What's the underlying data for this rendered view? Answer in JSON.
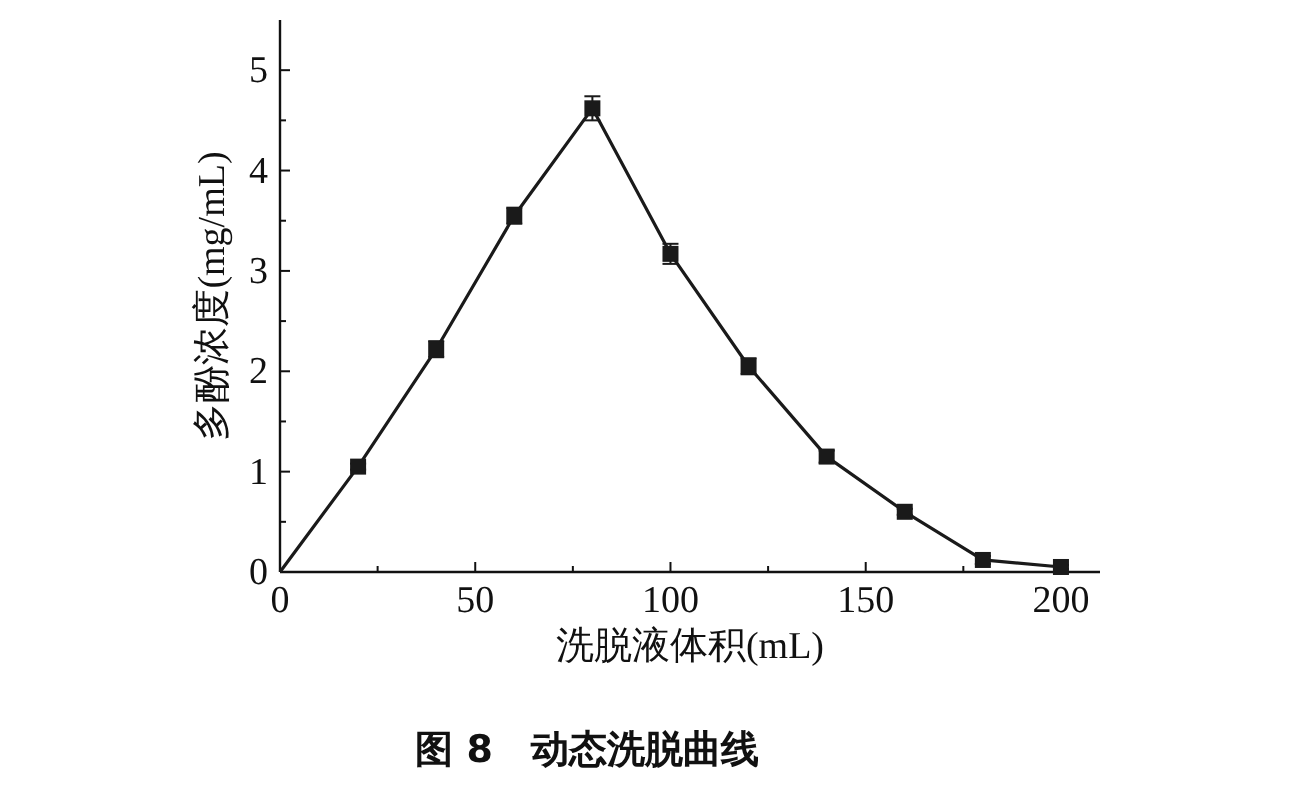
{
  "chart_data": {
    "type": "line",
    "title": "图 8　动态洗脱曲线",
    "xlabel": "洗脱液体积(mL)",
    "ylabel": "多酚浓度(mg/mL)",
    "xlim": [
      0,
      210
    ],
    "ylim": [
      0,
      5.5
    ],
    "xticks": [
      0,
      {
        "value": 25,
        "label": null
      },
      50,
      {
        "value": 75,
        "label": null
      },
      100,
      {
        "value": 125,
        "label": null
      },
      150,
      {
        "value": 175,
        "label": null
      },
      200
    ],
    "yticks": [
      0,
      {
        "value": 0.5,
        "label": null
      },
      1,
      {
        "value": 1.5,
        "label": null
      },
      2,
      {
        "value": 2.5,
        "label": null
      },
      3,
      {
        "value": 3.5,
        "label": null
      },
      4,
      {
        "value": 4.5,
        "label": null
      },
      5
    ],
    "grid": false,
    "series": [
      {
        "type": "line",
        "color": "#1a1a1a",
        "marker": "none",
        "line_style": "solid",
        "x": [
          0,
          20,
          40,
          60,
          80,
          100,
          120,
          140,
          160,
          180,
          200
        ],
        "values": [
          0,
          1.05,
          2.22,
          3.55,
          4.62,
          3.17,
          2.05,
          1.15,
          0.6,
          0.12,
          0.05
        ]
      },
      {
        "type": "scatter",
        "color": "#1a1a1a",
        "marker": "square",
        "x": [
          20,
          40,
          60,
          80,
          100,
          120,
          140,
          160,
          180,
          200
        ],
        "values": [
          1.05,
          2.22,
          3.55,
          4.62,
          3.17,
          2.05,
          1.15,
          0.6,
          0.12,
          0.05
        ],
        "errors": [
          0.03,
          0.08,
          0.08,
          0.12,
          0.1,
          0.08,
          0.06,
          0.03,
          0.04,
          0.02
        ]
      }
    ]
  }
}
